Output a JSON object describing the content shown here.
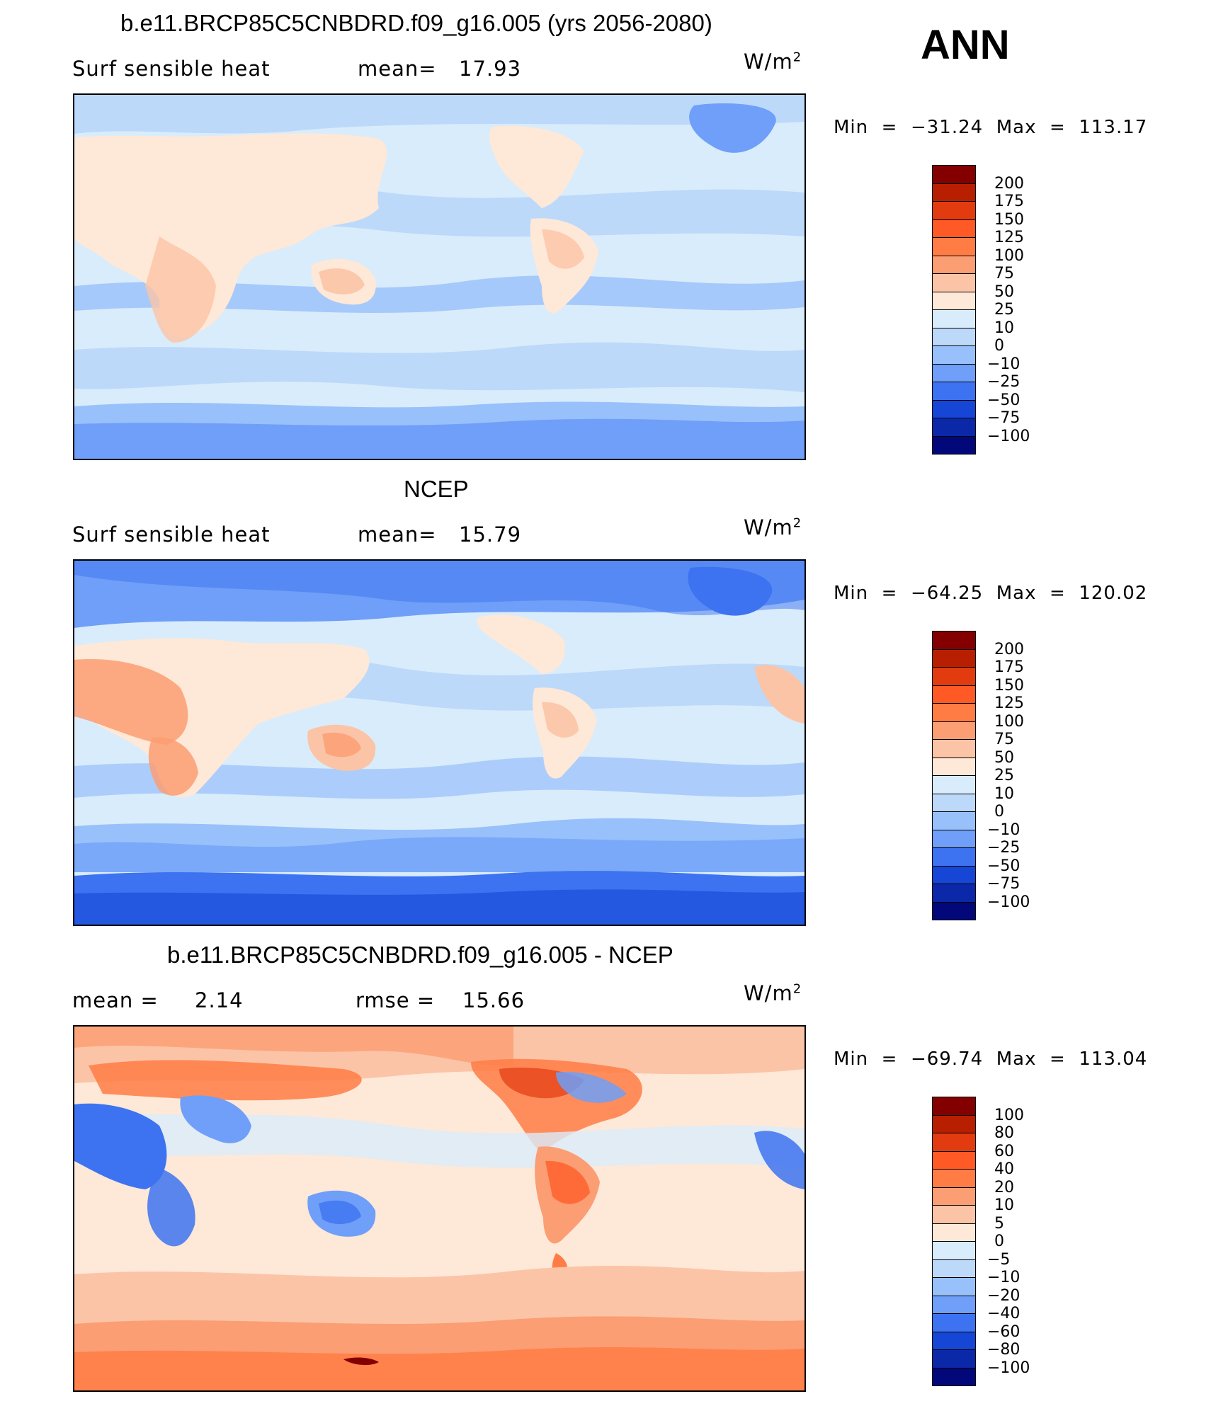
{
  "season": "ANN",
  "panels": [
    {
      "title": "b.e11.BRCP85C5CNBDRD.f09_g16.005 (yrs 2056-2080)",
      "left_label": "Surf sensible heat",
      "mid_label": "mean=",
      "mid_value": "17.93",
      "unit_main": "W/m",
      "unit_sup": "2",
      "min_label": "Min",
      "min_value": "−31.24",
      "max_label": "Max",
      "max_value": "113.17",
      "colorbar": {
        "labels": [
          "200",
          "175",
          "150",
          "125",
          "100",
          "75",
          "50",
          "25",
          "10",
          "0",
          "−10",
          "−25",
          "−50",
          "−75",
          "−100"
        ],
        "colors": [
          "#840000",
          "#b81f00",
          "#e23b0f",
          "#ff5a25",
          "#ff7d45",
          "#fb9e73",
          "#fcc4a6",
          "#fee8d8",
          "#d9ecfb",
          "#bcd9fa",
          "#98c0fb",
          "#6f9ff8",
          "#3d73f0",
          "#1646d6",
          "#0a28a8",
          "#02087a"
        ]
      }
    },
    {
      "title": "NCEP",
      "left_label": "Surf sensible heat",
      "mid_label": "mean=",
      "mid_value": "15.79",
      "unit_main": "W/m",
      "unit_sup": "2",
      "min_label": "Min",
      "min_value": "−64.25",
      "max_label": "Max",
      "max_value": "120.02",
      "colorbar": {
        "labels": [
          "200",
          "175",
          "150",
          "125",
          "100",
          "75",
          "50",
          "25",
          "10",
          "0",
          "−10",
          "−25",
          "−50",
          "−75",
          "−100"
        ],
        "colors": [
          "#840000",
          "#b81f00",
          "#e23b0f",
          "#ff5a25",
          "#ff7d45",
          "#fb9e73",
          "#fcc4a6",
          "#fee8d8",
          "#d9ecfb",
          "#bcd9fa",
          "#98c0fb",
          "#6f9ff8",
          "#3d73f0",
          "#1646d6",
          "#0a28a8",
          "#02087a"
        ]
      }
    },
    {
      "title": "b.e11.BRCP85C5CNBDRD.f09_g16.005 - NCEP",
      "left_label": "mean =",
      "left_value": "2.14",
      "mid_label": "rmse =",
      "mid_value": "15.66",
      "unit_main": "W/m",
      "unit_sup": "2",
      "min_label": "Min",
      "min_value": "−69.74",
      "max_label": "Max",
      "max_value": "113.04",
      "colorbar": {
        "labels": [
          "100",
          "80",
          "60",
          "40",
          "20",
          "10",
          "5",
          "0",
          "−5",
          "−10",
          "−20",
          "−40",
          "−60",
          "−80",
          "−100"
        ],
        "colors": [
          "#840000",
          "#b81f00",
          "#e23b0f",
          "#ff5a25",
          "#ff7d45",
          "#fb9e73",
          "#fcc4a6",
          "#fee8d8",
          "#d9ecfb",
          "#bcd9fa",
          "#98c0fb",
          "#6f9ff8",
          "#3d73f0",
          "#1646d6",
          "#0a28a8",
          "#02087a"
        ]
      }
    }
  ]
}
